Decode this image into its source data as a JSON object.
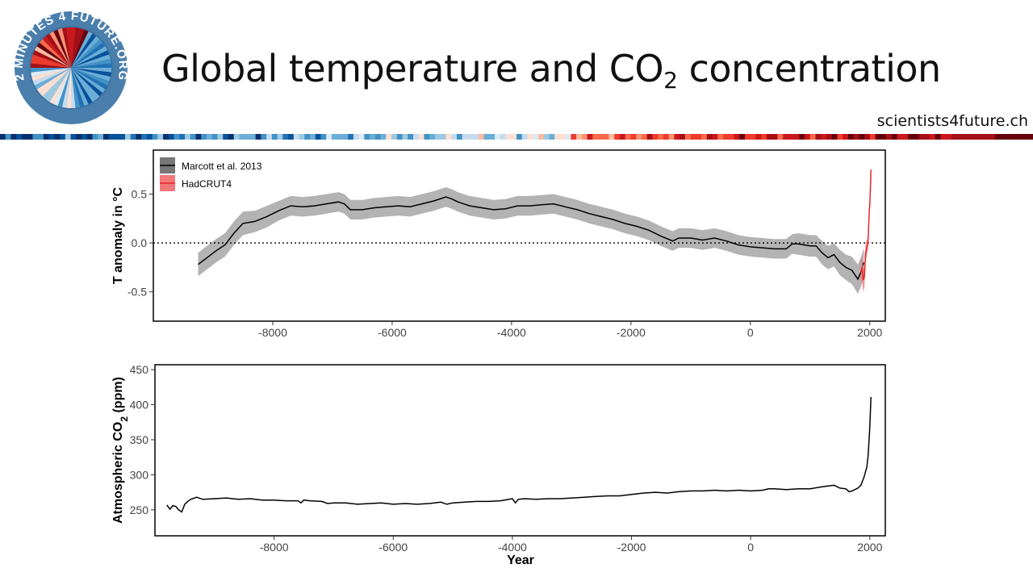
{
  "slide": {
    "title_main": "Global temperature and CO",
    "title_sub": "2",
    "title_rest": " concentration",
    "site_url": "scientists4future.ch",
    "logo_text": "2 MINUTES 4 FUTURE.ORG"
  },
  "colors": {
    "warming_stripes_blue": "#08306b",
    "warming_stripes_red": "#67000d",
    "logo_ring": "#4a7fad",
    "marcott_band": "#b3b3b3",
    "marcott_line": "#000000",
    "hadcrut": "#e8262a",
    "co2_line": "#000000"
  },
  "chart_data": [
    {
      "type": "line",
      "title": "",
      "xlabel": "",
      "ylabel": "T anomaly in °C",
      "xlim": [
        -10000,
        2260
      ],
      "ylim": [
        -0.8,
        0.95
      ],
      "xticks": [
        -8000,
        -6000,
        -4000,
        -2000,
        0,
        2000
      ],
      "yticks": [
        -0.5,
        0.0,
        0.5
      ],
      "ytick_labels": [
        "-0.5",
        "0.0",
        "0.5"
      ],
      "grid": false,
      "legend": "top-left",
      "reference_line": {
        "y": 0,
        "style": "dotted"
      },
      "series": [
        {
          "name": "Marcott et al. 2013",
          "x": [
            -9250,
            -9100,
            -8950,
            -8800,
            -8650,
            -8500,
            -8300,
            -8100,
            -7900,
            -7700,
            -7500,
            -7300,
            -7100,
            -6900,
            -6800,
            -6700,
            -6500,
            -6300,
            -6100,
            -5900,
            -5700,
            -5500,
            -5300,
            -5100,
            -5000,
            -4900,
            -4700,
            -4500,
            -4300,
            -4100,
            -3900,
            -3700,
            -3500,
            -3300,
            -3100,
            -2900,
            -2700,
            -2500,
            -2300,
            -2100,
            -1900,
            -1700,
            -1500,
            -1300,
            -1200,
            -1000,
            -800,
            -600,
            -400,
            -200,
            0,
            200,
            400,
            600,
            700,
            800,
            1000,
            1100,
            1200,
            1300,
            1400,
            1500,
            1600,
            1700,
            1800,
            1850,
            1900
          ],
          "y": [
            -0.22,
            -0.15,
            -0.08,
            -0.02,
            0.1,
            0.2,
            0.22,
            0.27,
            0.33,
            0.38,
            0.37,
            0.38,
            0.4,
            0.42,
            0.4,
            0.34,
            0.34,
            0.36,
            0.37,
            0.38,
            0.37,
            0.4,
            0.43,
            0.47,
            0.45,
            0.42,
            0.38,
            0.36,
            0.34,
            0.35,
            0.38,
            0.38,
            0.39,
            0.4,
            0.37,
            0.34,
            0.3,
            0.27,
            0.24,
            0.2,
            0.17,
            0.13,
            0.07,
            0.02,
            0.05,
            0.05,
            0.03,
            0.05,
            0.02,
            -0.02,
            -0.04,
            -0.05,
            -0.06,
            -0.06,
            -0.01,
            -0.01,
            -0.03,
            -0.03,
            -0.1,
            -0.15,
            -0.12,
            -0.2,
            -0.25,
            -0.28,
            -0.37,
            -0.3,
            -0.2
          ],
          "band": [
            0.12,
            0.12,
            0.12,
            0.12,
            0.12,
            0.12,
            0.11,
            0.11,
            0.1,
            0.1,
            0.1,
            0.1,
            0.1,
            0.1,
            0.1,
            0.1,
            0.1,
            0.1,
            0.1,
            0.1,
            0.1,
            0.1,
            0.1,
            0.1,
            0.1,
            0.1,
            0.1,
            0.1,
            0.1,
            0.1,
            0.1,
            0.1,
            0.1,
            0.1,
            0.1,
            0.1,
            0.1,
            0.1,
            0.1,
            0.1,
            0.1,
            0.1,
            0.1,
            0.1,
            0.1,
            0.1,
            0.1,
            0.1,
            0.1,
            0.1,
            0.1,
            0.1,
            0.1,
            0.1,
            0.1,
            0.11,
            0.11,
            0.11,
            0.12,
            0.12,
            0.12,
            0.13,
            0.13,
            0.14,
            0.15,
            0.15,
            0.15
          ]
        },
        {
          "name": "HadCRUT4",
          "x": [
            1850,
            1870,
            1890,
            1910,
            1930,
            1950,
            1970,
            1990,
            2000,
            2010,
            2019
          ],
          "y": [
            -0.3,
            -0.25,
            -0.38,
            -0.35,
            -0.1,
            -0.05,
            0.0,
            0.3,
            0.4,
            0.55,
            0.75
          ],
          "band": [
            0.12,
            0.12,
            0.12,
            0.1,
            0.1,
            0.08,
            0.06,
            0.06,
            0.06,
            0.05,
            0.05
          ]
        }
      ]
    },
    {
      "type": "line",
      "title": "",
      "xlabel": "Year",
      "ylabel_main": "Atmospheric  CO",
      "ylabel_sub": "2",
      "ylabel_unit": " (ppm)",
      "xlim": [
        -10000,
        2260
      ],
      "ylim": [
        213,
        457
      ],
      "xticks": [
        -8000,
        -6000,
        -4000,
        -2000,
        0,
        2000
      ],
      "yticks": [
        250,
        300,
        350,
        400,
        450
      ],
      "grid": false,
      "series": [
        {
          "name": "",
          "x": [
            -9800,
            -9750,
            -9700,
            -9650,
            -9600,
            -9550,
            -9500,
            -9450,
            -9400,
            -9300,
            -9200,
            -9000,
            -8800,
            -8600,
            -8400,
            -8200,
            -8000,
            -7800,
            -7600,
            -7550,
            -7500,
            -7400,
            -7200,
            -7100,
            -7000,
            -6800,
            -6600,
            -6400,
            -6200,
            -6000,
            -5800,
            -5600,
            -5400,
            -5200,
            -5100,
            -5000,
            -4800,
            -4600,
            -4400,
            -4200,
            -4000,
            -3950,
            -3900,
            -3800,
            -3600,
            -3400,
            -3200,
            -3000,
            -2800,
            -2600,
            -2400,
            -2200,
            -2000,
            -1800,
            -1600,
            -1400,
            -1200,
            -1000,
            -800,
            -600,
            -400,
            -200,
            0,
            200,
            300,
            400,
            600,
            800,
            1000,
            1200,
            1300,
            1400,
            1500,
            1600,
            1650,
            1700,
            1750,
            1800,
            1850,
            1900,
            1950,
            1970,
            1990,
            2000,
            2010,
            2019
          ],
          "y": [
            257,
            251,
            256,
            255,
            250,
            247,
            258,
            262,
            265,
            268,
            265,
            266,
            267,
            265,
            266,
            264,
            264,
            263,
            263,
            260,
            264,
            263,
            262,
            259,
            260,
            260,
            258,
            259,
            260,
            258,
            259,
            258,
            259,
            261,
            258,
            260,
            261,
            262,
            262,
            263,
            266,
            260,
            265,
            266,
            265,
            266,
            266,
            267,
            268,
            269,
            270,
            270,
            272,
            274,
            275,
            274,
            276,
            277,
            277,
            278,
            277,
            278,
            277,
            278,
            280,
            280,
            279,
            280,
            280,
            283,
            284,
            285,
            281,
            280,
            276,
            277,
            279,
            281,
            285,
            296,
            311,
            326,
            354,
            369,
            389,
            411
          ]
        }
      ]
    }
  ]
}
